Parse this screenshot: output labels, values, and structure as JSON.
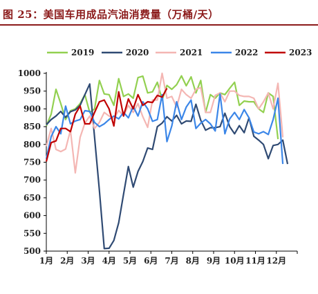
{
  "title": "图 25：美国车用成品汽油消费量（万桶/天）",
  "colors": {
    "title": "#8b1a1a",
    "s2019": "#92d050",
    "s2020": "#2f4a73",
    "s2021": "#f4b6b3",
    "s2022": "#3b86e8",
    "s2023": "#c00000"
  },
  "chart_data": {
    "type": "line",
    "title": "美国车用成品汽油消费量（万桶/天）",
    "xlabel": "",
    "ylabel": "",
    "ylim": [
      500,
      1000
    ],
    "yticks": [
      500,
      550,
      600,
      650,
      700,
      750,
      800,
      850,
      900,
      950,
      1000
    ],
    "xlim": [
      1,
      53
    ],
    "xtick_labels": [
      "1月",
      "2月",
      "3月",
      "4月",
      "5月",
      "6月",
      "7月",
      "8月",
      "9月",
      "10月",
      "11月",
      "12月"
    ],
    "grid": false,
    "legend_position": "top",
    "series": [
      {
        "name": "2019",
        "color": "#92d050",
        "values": [
          852,
          885,
          955,
          915,
          870,
          895,
          900,
          915,
          940,
          890,
          900,
          980,
          942,
          940,
          910,
          985,
          935,
          942,
          930,
          988,
          992,
          945,
          948,
          975,
          925,
          966,
          955,
          968,
          993,
          965,
          990,
          945,
          980,
          890,
          940,
          930,
          945,
          940,
          958,
          975,
          910,
          922,
          920,
          920,
          900,
          890,
          945,
          935,
          815
        ]
      },
      {
        "name": "2020",
        "color": "#2f4a73",
        "values": [
          855,
          870,
          880,
          893,
          876,
          892,
          897,
          910,
          940,
          970,
          820,
          670,
          507,
          508,
          530,
          580,
          660,
          738,
          680,
          724,
          752,
          790,
          786,
          850,
          860,
          878,
          866,
          882,
          858,
          866,
          865,
          913,
          868,
          840,
          847,
          847,
          850,
          888,
          850,
          830,
          853,
          833,
          875,
          823,
          812,
          800,
          760,
          797,
          800,
          812,
          745
        ]
      },
      {
        "name": "2021",
        "color": "#f4b6b3",
        "values": [
          795,
          845,
          786,
          780,
          787,
          840,
          720,
          820,
          860,
          880,
          845,
          862,
          890,
          880,
          872,
          896,
          880,
          910,
          890,
          915,
          878,
          848,
          925,
          925,
          1000,
          930,
          935,
          905,
          955,
          940,
          930,
          955,
          960,
          890,
          890,
          938,
          945,
          920,
          950,
          950,
          938,
          935,
          935,
          930,
          900,
          920,
          945,
          900,
          972,
          820
        ]
      },
      {
        "name": "2022",
        "color": "#3b86e8",
        "values": [
          760,
          822,
          850,
          830,
          908,
          858,
          866,
          870,
          895,
          893,
          862,
          850,
          858,
          870,
          880,
          872,
          890,
          875,
          907,
          880,
          920,
          900,
          865,
          870,
          940,
          808,
          852,
          920,
          870,
          905,
          925,
          845,
          860,
          870,
          858,
          838,
          942,
          830,
          872,
          890,
          870,
          898,
          875,
          835,
          830,
          836,
          828,
          870,
          930,
          745
        ]
      },
      {
        "name": "2023",
        "color": "#c00000",
        "values": [
          752,
          805,
          810,
          845,
          845,
          836,
          885,
          908,
          858,
          858,
          890,
          920,
          925,
          900,
          852,
          948,
          880,
          928,
          900,
          940,
          910,
          920,
          918,
          938,
          933,
          958
        ]
      }
    ]
  }
}
